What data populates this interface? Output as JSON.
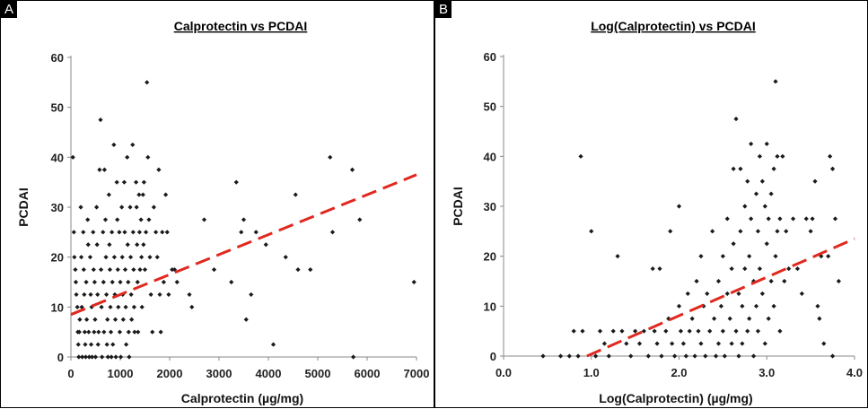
{
  "panels": [
    {
      "letter": "A"
    },
    {
      "letter": "B"
    }
  ],
  "chart_data": [
    {
      "type": "scatter",
      "title": "Calprotectin vs PCDAI",
      "xlabel": "Calprotectin (µg/mg)",
      "ylabel": "PCDAI",
      "xlim": [
        0,
        7000
      ],
      "ylim": [
        0,
        60
      ],
      "xticks": [
        0,
        1000,
        2000,
        3000,
        4000,
        5000,
        6000,
        7000
      ],
      "xtick_labels": [
        "0",
        "1000",
        "2000",
        "3000",
        "4000",
        "5000",
        "6000",
        "7000"
      ],
      "yticks": [
        0,
        10,
        20,
        30,
        40,
        50,
        60
      ],
      "ytick_labels": [
        "0",
        "10",
        "20",
        "30",
        "40",
        "50",
        "60"
      ],
      "grid": false,
      "marker_color": "#1a1a1a",
      "trendline": {
        "style": "dashed",
        "color": "#e0281f",
        "x": [
          0,
          7000
        ],
        "y": [
          8.5,
          36.5
        ]
      },
      "points": [
        [
          40,
          40
        ],
        [
          60,
          25
        ],
        [
          70,
          20
        ],
        [
          90,
          17.5
        ],
        [
          100,
          15
        ],
        [
          110,
          12.5
        ],
        [
          130,
          10
        ],
        [
          140,
          5
        ],
        [
          150,
          2.5
        ],
        [
          160,
          0
        ],
        [
          170,
          5
        ],
        [
          180,
          7.5
        ],
        [
          200,
          30
        ],
        [
          210,
          20
        ],
        [
          220,
          10
        ],
        [
          230,
          0
        ],
        [
          250,
          25
        ],
        [
          260,
          17.5
        ],
        [
          270,
          12.5
        ],
        [
          280,
          5
        ],
        [
          290,
          2.5
        ],
        [
          300,
          0
        ],
        [
          310,
          15
        ],
        [
          320,
          7.5
        ],
        [
          340,
          27.5
        ],
        [
          350,
          22.5
        ],
        [
          360,
          5
        ],
        [
          370,
          0
        ],
        [
          390,
          20
        ],
        [
          400,
          12.5
        ],
        [
          410,
          2.5
        ],
        [
          420,
          10
        ],
        [
          430,
          0
        ],
        [
          450,
          25
        ],
        [
          460,
          17.5
        ],
        [
          470,
          5
        ],
        [
          480,
          15
        ],
        [
          490,
          7.5
        ],
        [
          500,
          0
        ],
        [
          520,
          30
        ],
        [
          530,
          22.5
        ],
        [
          540,
          12.5
        ],
        [
          550,
          2.5
        ],
        [
          560,
          5
        ],
        [
          580,
          37.5
        ],
        [
          600,
          47.5
        ],
        [
          610,
          17.5
        ],
        [
          620,
          10
        ],
        [
          630,
          0
        ],
        [
          650,
          25
        ],
        [
          660,
          15
        ],
        [
          670,
          5
        ],
        [
          680,
          37.5
        ],
        [
          700,
          27.5
        ],
        [
          710,
          20
        ],
        [
          720,
          12.5
        ],
        [
          730,
          2.5
        ],
        [
          740,
          7.5
        ],
        [
          750,
          0
        ],
        [
          770,
          32.5
        ],
        [
          780,
          22.5
        ],
        [
          790,
          17.5
        ],
        [
          800,
          10
        ],
        [
          810,
          5
        ],
        [
          820,
          0
        ],
        [
          830,
          25
        ],
        [
          840,
          15
        ],
        [
          850,
          2.5
        ],
        [
          870,
          42.5
        ],
        [
          880,
          20
        ],
        [
          890,
          12.5
        ],
        [
          900,
          7.5
        ],
        [
          910,
          0
        ],
        [
          930,
          35
        ],
        [
          940,
          27.5
        ],
        [
          950,
          17.5
        ],
        [
          960,
          10
        ],
        [
          980,
          25
        ],
        [
          990,
          5
        ],
        [
          1000,
          15
        ],
        [
          1010,
          0
        ],
        [
          1030,
          30
        ],
        [
          1040,
          20
        ],
        [
          1050,
          12.5
        ],
        [
          1060,
          7.5
        ],
        [
          1080,
          35
        ],
        [
          1090,
          25
        ],
        [
          1100,
          17.5
        ],
        [
          1110,
          10
        ],
        [
          1120,
          2.5
        ],
        [
          1140,
          40
        ],
        [
          1150,
          22.5
        ],
        [
          1160,
          15
        ],
        [
          1170,
          5
        ],
        [
          1180,
          0
        ],
        [
          1200,
          30
        ],
        [
          1210,
          20
        ],
        [
          1220,
          12.5
        ],
        [
          1230,
          7.5
        ],
        [
          1250,
          42.5
        ],
        [
          1260,
          25
        ],
        [
          1270,
          17.5
        ],
        [
          1280,
          10
        ],
        [
          1290,
          5
        ],
        [
          1320,
          35
        ],
        [
          1330,
          30
        ],
        [
          1340,
          22.5
        ],
        [
          1350,
          15
        ],
        [
          1360,
          5
        ],
        [
          1380,
          32.5
        ],
        [
          1390,
          25
        ],
        [
          1400,
          17.5
        ],
        [
          1420,
          27.5
        ],
        [
          1430,
          20
        ],
        [
          1440,
          10
        ],
        [
          1460,
          32.5
        ],
        [
          1470,
          22.5
        ],
        [
          1480,
          35
        ],
        [
          1500,
          17.5
        ],
        [
          1520,
          25
        ],
        [
          1540,
          55
        ],
        [
          1560,
          40
        ],
        [
          1580,
          27.5
        ],
        [
          1600,
          20
        ],
        [
          1620,
          12.5
        ],
        [
          1650,
          5
        ],
        [
          1680,
          30
        ],
        [
          1720,
          25
        ],
        [
          1750,
          20
        ],
        [
          1780,
          37.5
        ],
        [
          1800,
          12.5
        ],
        [
          1820,
          5
        ],
        [
          1850,
          25
        ],
        [
          1880,
          15
        ],
        [
          1920,
          32.5
        ],
        [
          1950,
          25
        ],
        [
          1980,
          12.5
        ],
        [
          2050,
          17.5
        ],
        [
          2100,
          17.5
        ],
        [
          2150,
          15
        ],
        [
          2400,
          12.5
        ],
        [
          2450,
          10
        ],
        [
          2700,
          27.5
        ],
        [
          2900,
          17.5
        ],
        [
          3250,
          15
        ],
        [
          3350,
          35
        ],
        [
          3450,
          25
        ],
        [
          3500,
          27.5
        ],
        [
          3550,
          7.5
        ],
        [
          3650,
          12.5
        ],
        [
          3750,
          25
        ],
        [
          3950,
          22.5
        ],
        [
          4100,
          2.5
        ],
        [
          4350,
          20
        ],
        [
          4550,
          32.5
        ],
        [
          4600,
          17.5
        ],
        [
          4850,
          17.5
        ],
        [
          5250,
          40
        ],
        [
          5300,
          25
        ],
        [
          5700,
          37.5
        ],
        [
          5720,
          0
        ],
        [
          5850,
          27.5
        ],
        [
          6950,
          15
        ]
      ]
    },
    {
      "type": "scatter",
      "title": "Log(Calprotectin) vs PCDAI",
      "xlabel": "Log(Calprotectin) (µg/mg)",
      "ylabel": "PCDAI",
      "xlim": [
        0,
        4
      ],
      "ylim": [
        0,
        60
      ],
      "xticks": [
        0,
        1,
        2,
        3,
        4
      ],
      "xtick_labels": [
        "0.0",
        "1.0",
        "2.0",
        "3.0",
        "4.0"
      ],
      "yticks": [
        0,
        10,
        20,
        30,
        40,
        50,
        60
      ],
      "ytick_labels": [
        "0",
        "10",
        "20",
        "30",
        "40",
        "50",
        "60"
      ],
      "grid": false,
      "marker_color": "#1a1a1a",
      "trendline": {
        "style": "dashed",
        "color": "#e0281f",
        "x": [
          0.95,
          4.0
        ],
        "y": [
          0,
          23.5
        ]
      },
      "points": [
        [
          0.45,
          0
        ],
        [
          0.65,
          0
        ],
        [
          0.75,
          0
        ],
        [
          0.8,
          5
        ],
        [
          0.85,
          0
        ],
        [
          0.88,
          40
        ],
        [
          0.9,
          5
        ],
        [
          1.0,
          25
        ],
        [
          1.05,
          0
        ],
        [
          1.1,
          5
        ],
        [
          1.15,
          2.5
        ],
        [
          1.2,
          0
        ],
        [
          1.25,
          5
        ],
        [
          1.3,
          20
        ],
        [
          1.35,
          5
        ],
        [
          1.4,
          2.5
        ],
        [
          1.45,
          0
        ],
        [
          1.5,
          5
        ],
        [
          1.55,
          2.5
        ],
        [
          1.6,
          5
        ],
        [
          1.65,
          0
        ],
        [
          1.7,
          17.5
        ],
        [
          1.72,
          5
        ],
        [
          1.75,
          2.5
        ],
        [
          1.78,
          17.5
        ],
        [
          1.8,
          0
        ],
        [
          1.85,
          5
        ],
        [
          1.88,
          7.5
        ],
        [
          1.9,
          25
        ],
        [
          1.92,
          2.5
        ],
        [
          1.95,
          0
        ],
        [
          2.0,
          30
        ],
        [
          2.0,
          10
        ],
        [
          2.02,
          5
        ],
        [
          2.05,
          2.5
        ],
        [
          2.08,
          0
        ],
        [
          2.1,
          12.5
        ],
        [
          2.12,
          5
        ],
        [
          2.15,
          7.5
        ],
        [
          2.18,
          0
        ],
        [
          2.2,
          15
        ],
        [
          2.22,
          5
        ],
        [
          2.25,
          20
        ],
        [
          2.25,
          2.5
        ],
        [
          2.28,
          10
        ],
        [
          2.3,
          0
        ],
        [
          2.32,
          12.5
        ],
        [
          2.35,
          5
        ],
        [
          2.38,
          25
        ],
        [
          2.4,
          7.5
        ],
        [
          2.42,
          0
        ],
        [
          2.45,
          15
        ],
        [
          2.45,
          2.5
        ],
        [
          2.48,
          10
        ],
        [
          2.5,
          20
        ],
        [
          2.5,
          5
        ],
        [
          2.52,
          0
        ],
        [
          2.55,
          27.5
        ],
        [
          2.55,
          12.5
        ],
        [
          2.58,
          7.5
        ],
        [
          2.6,
          17.5
        ],
        [
          2.6,
          2.5
        ],
        [
          2.62,
          37.5
        ],
        [
          2.62,
          22.5
        ],
        [
          2.65,
          47.5
        ],
        [
          2.65,
          5
        ],
        [
          2.68,
          12.5
        ],
        [
          2.68,
          0
        ],
        [
          2.7,
          37.5
        ],
        [
          2.7,
          25
        ],
        [
          2.72,
          10
        ],
        [
          2.72,
          2.5
        ],
        [
          2.75,
          30
        ],
        [
          2.75,
          17.5
        ],
        [
          2.78,
          35
        ],
        [
          2.78,
          5
        ],
        [
          2.8,
          20
        ],
        [
          2.8,
          7.5
        ],
        [
          2.82,
          42.5
        ],
        [
          2.82,
          27.5
        ],
        [
          2.85,
          15
        ],
        [
          2.85,
          0
        ],
        [
          2.88,
          32.5
        ],
        [
          2.88,
          10
        ],
        [
          2.9,
          25
        ],
        [
          2.9,
          5
        ],
        [
          2.92,
          40
        ],
        [
          2.92,
          17.5
        ],
        [
          2.95,
          35
        ],
        [
          2.95,
          12.5
        ],
        [
          2.98,
          30
        ],
        [
          2.98,
          2.5
        ],
        [
          3.0,
          42.5
        ],
        [
          3.0,
          22.5
        ],
        [
          3.02,
          27.5
        ],
        [
          3.02,
          7.5
        ],
        [
          3.05,
          32.5
        ],
        [
          3.05,
          15
        ],
        [
          3.08,
          37.5
        ],
        [
          3.08,
          10
        ],
        [
          3.1,
          55
        ],
        [
          3.1,
          20
        ],
        [
          3.12,
          40
        ],
        [
          3.12,
          25
        ],
        [
          3.15,
          27.5
        ],
        [
          3.15,
          5
        ],
        [
          3.18,
          40
        ],
        [
          3.2,
          15
        ],
        [
          3.22,
          25
        ],
        [
          3.25,
          17.5
        ],
        [
          3.3,
          27.5
        ],
        [
          3.35,
          17.5
        ],
        [
          3.4,
          12.5
        ],
        [
          3.45,
          27.5
        ],
        [
          3.5,
          25
        ],
        [
          3.52,
          27.5
        ],
        [
          3.55,
          35
        ],
        [
          3.58,
          10
        ],
        [
          3.6,
          7.5
        ],
        [
          3.62,
          20
        ],
        [
          3.65,
          2.5
        ],
        [
          3.7,
          20
        ],
        [
          3.72,
          40
        ],
        [
          3.75,
          37.5
        ],
        [
          3.78,
          27.5
        ],
        [
          3.82,
          15
        ],
        [
          3.75,
          0
        ]
      ]
    }
  ]
}
